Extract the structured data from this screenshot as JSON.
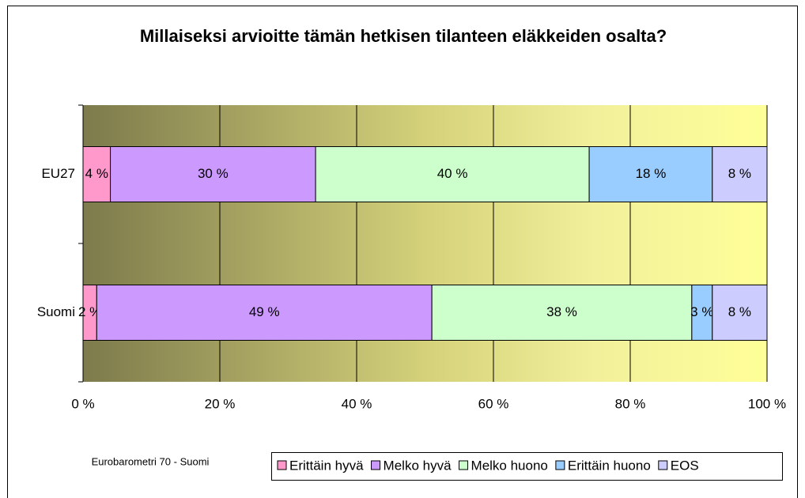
{
  "chart_data": {
    "type": "stacked-horizontal-bar",
    "title": "Millaiseksi arvioitte tämän hetkisen tilanteen eläkkeiden osalta?",
    "annotation": "Eurobarometri 70 - Suomi",
    "categories": [
      "EU27",
      "Suomi"
    ],
    "series": [
      {
        "name": "Erittäin hyvä",
        "color": "#ff99cc",
        "values": [
          4,
          2
        ],
        "value_labels": [
          "4 %",
          "2 %"
        ]
      },
      {
        "name": "Melko hyvä",
        "color": "#cc99ff",
        "values": [
          30,
          49
        ],
        "value_labels": [
          "30 %",
          "49 %"
        ]
      },
      {
        "name": "Melko huono",
        "color": "#ccffcc",
        "values": [
          40,
          38
        ],
        "value_labels": [
          "40 %",
          "38 %"
        ]
      },
      {
        "name": "Erittäin huono",
        "color": "#99ccff",
        "values": [
          18,
          3
        ],
        "value_labels": [
          "18 %",
          "3 %"
        ]
      },
      {
        "name": "EOS",
        "color": "#ccccff",
        "values": [
          8,
          8
        ],
        "value_labels": [
          "8 %",
          "8 %"
        ]
      }
    ],
    "xlim": [
      0,
      100
    ],
    "xticks": [
      {
        "value": 0,
        "label": "0 %"
      },
      {
        "value": 20,
        "label": "20 %"
      },
      {
        "value": 40,
        "label": "40 %"
      },
      {
        "value": 60,
        "label": "60 %"
      },
      {
        "value": 80,
        "label": "80 %"
      },
      {
        "value": 100,
        "label": "100 %"
      }
    ],
    "grid": true,
    "legend": "bottom"
  }
}
